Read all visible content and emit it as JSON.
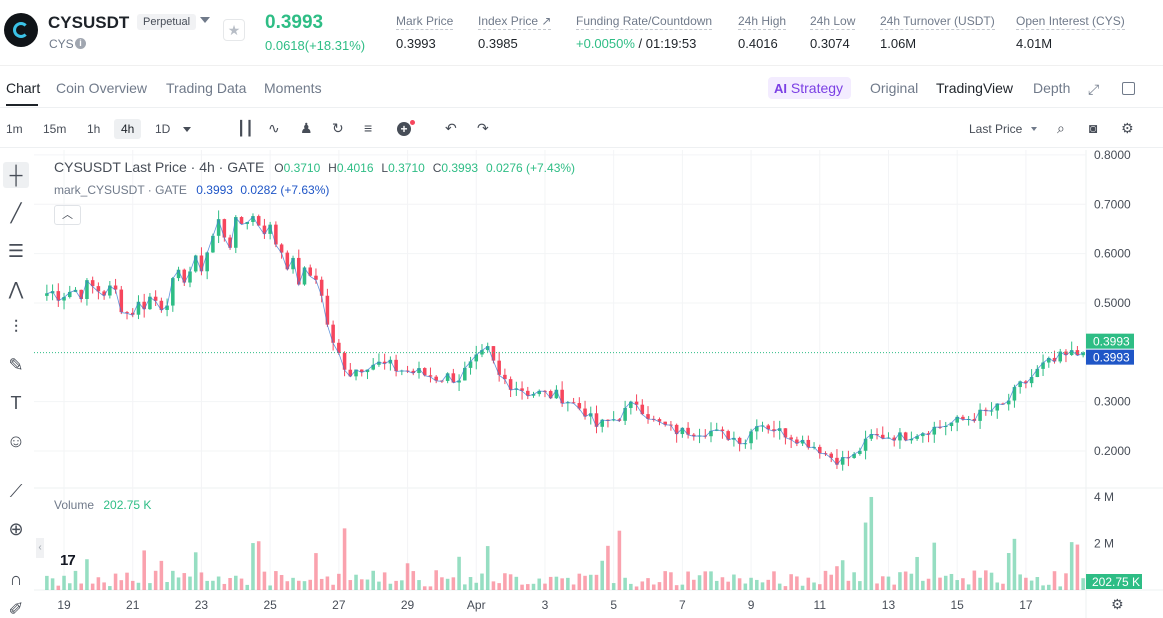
{
  "header": {
    "pair": "CYSUSDT",
    "contract_type": "Perpetual",
    "base": "CYS",
    "last_price": "0.3993",
    "change": "0.0618(+18.31%)",
    "stats": [
      {
        "label": "Mark Price",
        "value": "0.3993"
      },
      {
        "label": "Index Price ↗",
        "value": "0.3985"
      },
      {
        "label": "Funding Rate/Countdown",
        "value_green": "+0.0050%",
        "value": " / 01:19:53"
      },
      {
        "label": "24h High",
        "value": "0.4016"
      },
      {
        "label": "24h Low",
        "value": "0.3074"
      },
      {
        "label": "24h Turnover (USDT)",
        "value": "1.06M"
      },
      {
        "label": "Open Interest (CYS)",
        "value": "4.01M"
      }
    ]
  },
  "tabs": {
    "left": [
      "Chart",
      "Coin Overview",
      "Trading Data",
      "Moments"
    ],
    "strategy": "Strategy",
    "strategy_icon": "AI",
    "right": [
      "Original",
      "TradingView",
      "Depth"
    ]
  },
  "toolbar": {
    "timeframes": [
      "1m",
      "15m",
      "1h",
      "4h",
      "1D"
    ],
    "active_timeframe": "4h",
    "price_type": "Last Price"
  },
  "chart": {
    "legend_title": "CYSUSDT Last Price · 4h · GATE",
    "ohlc": {
      "O": "0.3710",
      "H": "0.4016",
      "L": "0.3710",
      "C": "0.3993",
      "change": "0.0276 (+7.43%)"
    },
    "mark_label": "mark_CYSUSDT · GATE",
    "mark_value": "0.3993",
    "mark_change": "0.0282 (+7.63%)",
    "volume_label": "Volume",
    "volume_value": "202.75 K",
    "price_tag_last": "0.3993",
    "price_tag_mark": "0.3993",
    "volume_tag": "202.75 K",
    "tv_logo": "17"
  },
  "chart_data": {
    "type": "candlestick",
    "title": "CYSUSDT Last Price · 4h · GATE",
    "y_ticks": [
      "0.8000",
      "0.7000",
      "0.6000",
      "0.5000",
      "0.3000",
      "0.2000"
    ],
    "y_tick_values": [
      0.8,
      0.7,
      0.6,
      0.5,
      0.3,
      0.2
    ],
    "ylim": [
      0.125,
      0.81
    ],
    "volume_ticks": [
      "4 M",
      "2 M"
    ],
    "volume_tick_values": [
      4000000,
      2000000
    ],
    "volume_max": 4300000,
    "x_ticks": [
      "19",
      "21",
      "23",
      "25",
      "27",
      "29",
      "Apr",
      "3",
      "5",
      "7",
      "9",
      "11",
      "13",
      "15",
      "17"
    ],
    "x_tick_index": [
      3,
      15,
      27,
      39,
      51,
      63,
      75,
      87,
      99,
      111,
      123,
      135,
      147,
      159,
      171
    ],
    "close_anchors": [
      [
        0,
        0.52
      ],
      [
        8,
        0.53
      ],
      [
        12,
        0.52
      ],
      [
        14,
        0.48
      ],
      [
        18,
        0.51
      ],
      [
        20,
        0.5
      ],
      [
        24,
        0.56
      ],
      [
        27,
        0.58
      ],
      [
        30,
        0.66
      ],
      [
        32,
        0.63
      ],
      [
        35,
        0.68
      ],
      [
        38,
        0.66
      ],
      [
        41,
        0.61
      ],
      [
        44,
        0.55
      ],
      [
        47,
        0.56
      ],
      [
        50,
        0.41
      ],
      [
        53,
        0.36
      ],
      [
        56,
        0.38
      ],
      [
        60,
        0.37
      ],
      [
        64,
        0.36
      ],
      [
        68,
        0.35
      ],
      [
        72,
        0.35
      ],
      [
        77,
        0.4
      ],
      [
        79,
        0.35
      ],
      [
        84,
        0.32
      ],
      [
        90,
        0.31
      ],
      [
        94,
        0.28
      ],
      [
        96,
        0.25
      ],
      [
        100,
        0.27
      ],
      [
        103,
        0.3
      ],
      [
        106,
        0.26
      ],
      [
        110,
        0.24
      ],
      [
        116,
        0.24
      ],
      [
        122,
        0.22
      ],
      [
        124,
        0.26
      ],
      [
        128,
        0.24
      ],
      [
        134,
        0.21
      ],
      [
        138,
        0.18
      ],
      [
        141,
        0.19
      ],
      [
        144,
        0.23
      ],
      [
        150,
        0.23
      ],
      [
        156,
        0.25
      ],
      [
        162,
        0.27
      ],
      [
        167,
        0.29
      ],
      [
        170,
        0.33
      ],
      [
        174,
        0.37
      ],
      [
        178,
        0.39
      ],
      [
        181,
        0.3993
      ]
    ],
    "last_value": 0.3993
  }
}
